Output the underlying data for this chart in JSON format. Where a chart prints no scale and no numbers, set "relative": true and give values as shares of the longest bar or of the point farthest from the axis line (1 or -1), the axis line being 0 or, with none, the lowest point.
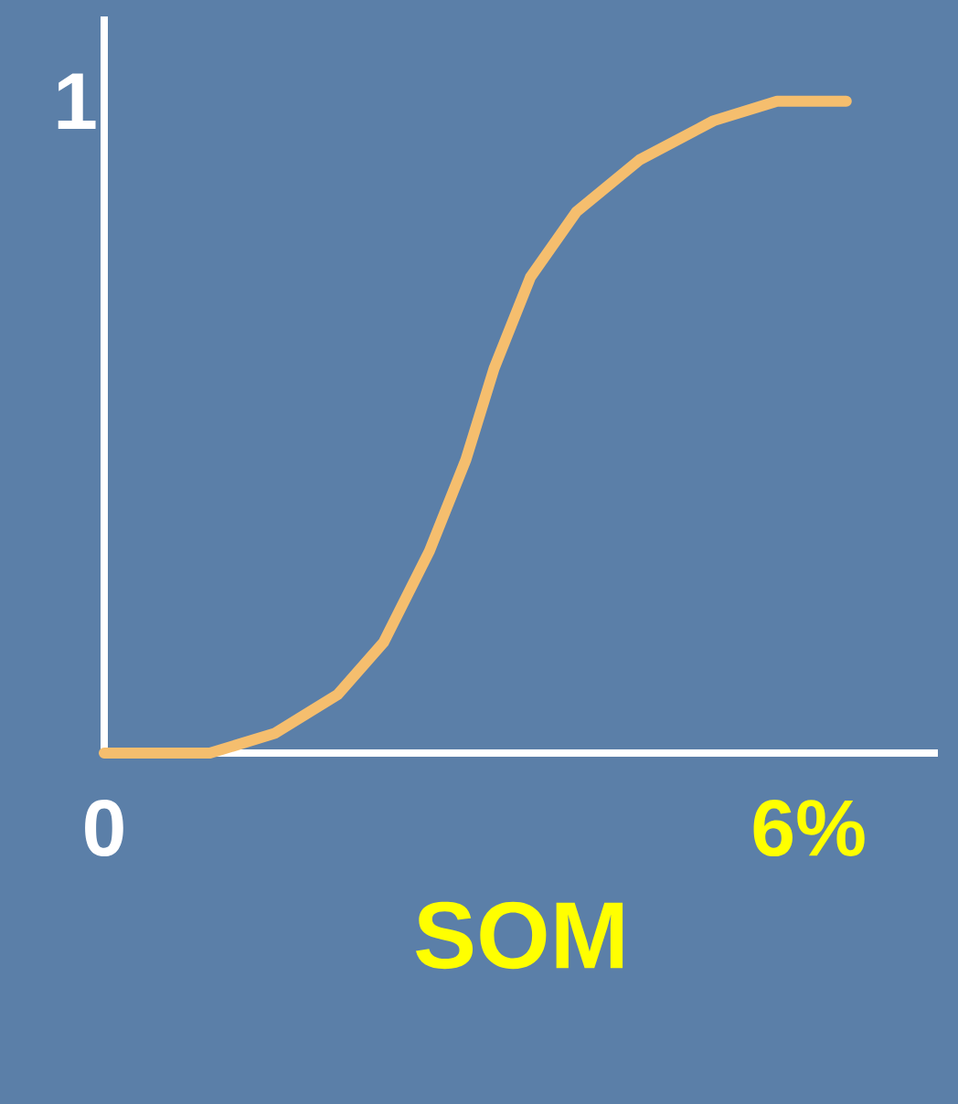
{
  "chart_data": {
    "type": "line",
    "xlabel": "SOM",
    "relative": true,
    "xlim": [
      0,
      7.1
    ],
    "xticks": [
      0,
      {
        "value": 6,
        "label": "6%"
      }
    ],
    "annotations": [
      "1"
    ],
    "series": [
      {
        "color": "#f5be6e",
        "x": [
          0,
          0.9,
          1.45,
          1.99,
          2.38,
          2.77,
          3.08,
          3.32,
          3.63,
          4.02,
          4.56,
          5.19,
          5.73,
          6.32
        ],
        "values": [
          0,
          0,
          0.03,
          0.09,
          0.17,
          0.31,
          0.45,
          0.59,
          0.73,
          0.83,
          0.91,
          0.97,
          1.0,
          1.0
        ]
      }
    ]
  }
}
